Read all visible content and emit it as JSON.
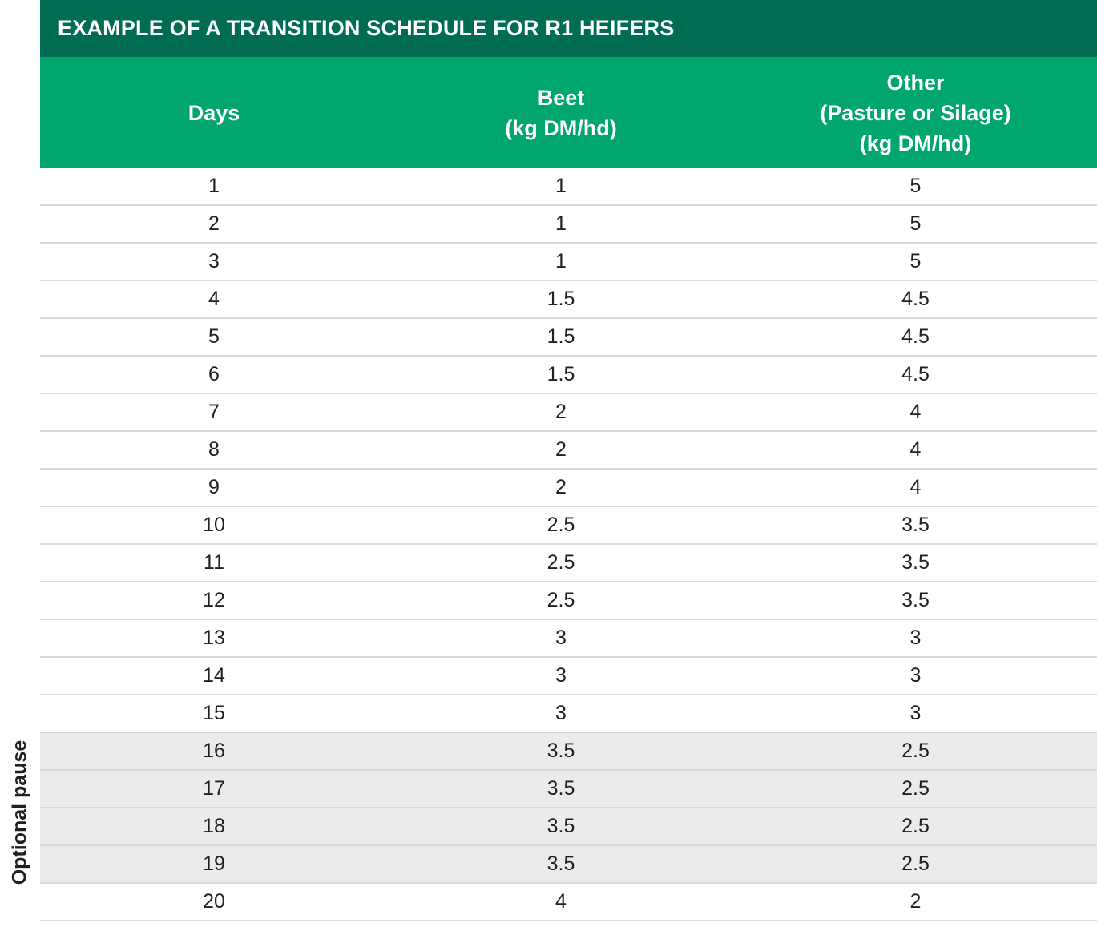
{
  "title": "EXAMPLE OF A TRANSITION SCHEDULE FOR R1 HEIFERS",
  "side_label": "Optional pause",
  "headers": {
    "days": [
      "Days"
    ],
    "beet": [
      "Beet",
      "(kg DM/hd)"
    ],
    "other": [
      "Other",
      "(Pasture or Silage)",
      "(kg DM/hd)"
    ]
  },
  "rows": [
    {
      "day": "1",
      "beet": "1",
      "other": "5",
      "shaded": false
    },
    {
      "day": "2",
      "beet": "1",
      "other": "5",
      "shaded": false
    },
    {
      "day": "3",
      "beet": "1",
      "other": "5",
      "shaded": false
    },
    {
      "day": "4",
      "beet": "1.5",
      "other": "4.5",
      "shaded": false
    },
    {
      "day": "5",
      "beet": "1.5",
      "other": "4.5",
      "shaded": false
    },
    {
      "day": "6",
      "beet": "1.5",
      "other": "4.5",
      "shaded": false
    },
    {
      "day": "7",
      "beet": "2",
      "other": "4",
      "shaded": false
    },
    {
      "day": "8",
      "beet": "2",
      "other": "4",
      "shaded": false
    },
    {
      "day": "9",
      "beet": "2",
      "other": "4",
      "shaded": false
    },
    {
      "day": "10",
      "beet": "2.5",
      "other": "3.5",
      "shaded": false
    },
    {
      "day": "11",
      "beet": "2.5",
      "other": "3.5",
      "shaded": false
    },
    {
      "day": "12",
      "beet": "2.5",
      "other": "3.5",
      "shaded": false
    },
    {
      "day": "13",
      "beet": "3",
      "other": "3",
      "shaded": false
    },
    {
      "day": "14",
      "beet": "3",
      "other": "3",
      "shaded": false
    },
    {
      "day": "15",
      "beet": "3",
      "other": "3",
      "shaded": false
    },
    {
      "day": "16",
      "beet": "3.5",
      "other": "2.5",
      "shaded": true
    },
    {
      "day": "17",
      "beet": "3.5",
      "other": "2.5",
      "shaded": true
    },
    {
      "day": "18",
      "beet": "3.5",
      "other": "2.5",
      "shaded": true
    },
    {
      "day": "19",
      "beet": "3.5",
      "other": "2.5",
      "shaded": true
    },
    {
      "day": "20",
      "beet": "4",
      "other": "2",
      "shaded": false
    }
  ],
  "colors": {
    "title_bg": "#006d53",
    "header_bg": "#00a66b",
    "shaded_row": "#ebebeb",
    "divider": "#d9d9d9"
  }
}
